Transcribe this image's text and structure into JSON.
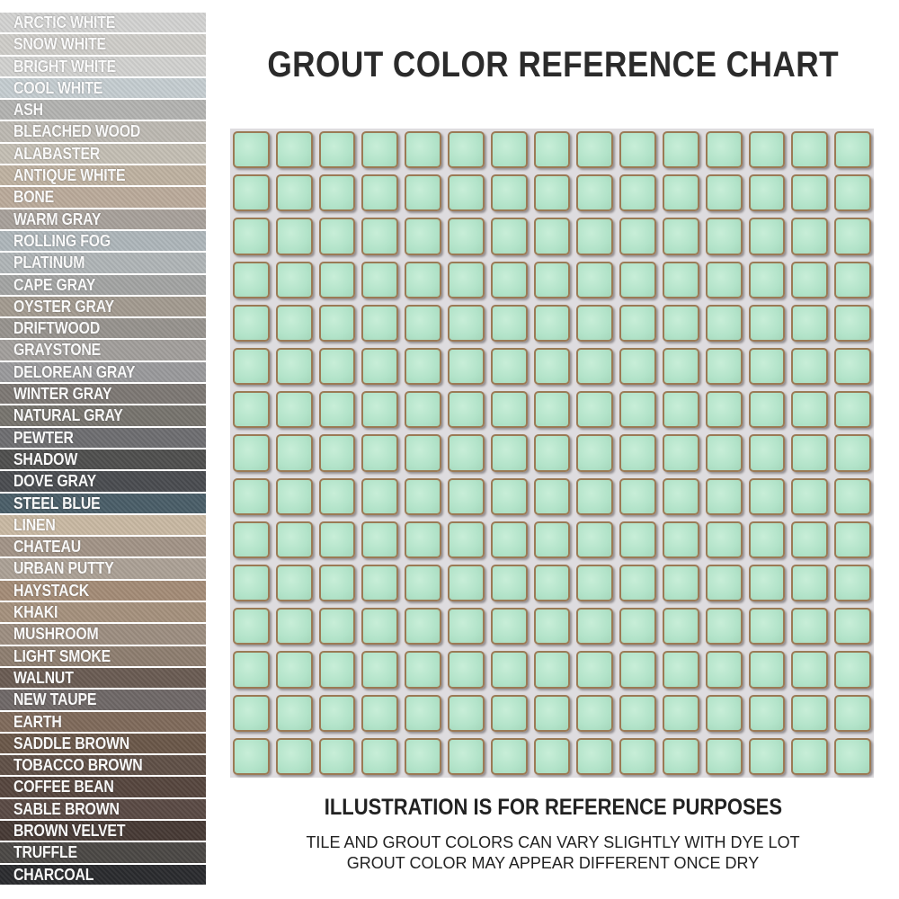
{
  "title": "GROUT COLOR REFERENCE CHART",
  "grout_colors": [
    {
      "name": "ARCTIC WHITE",
      "color": "#d3d3d2"
    },
    {
      "name": "SNOW WHITE",
      "color": "#cfcdc9"
    },
    {
      "name": "BRIGHT WHITE",
      "color": "#d2d2d0"
    },
    {
      "name": "COOL WHITE",
      "color": "#c5cdd1"
    },
    {
      "name": "ASH",
      "color": "#b3b3b1"
    },
    {
      "name": "BLEACHED WOOD",
      "color": "#bdb9b2"
    },
    {
      "name": "ALABASTER",
      "color": "#c4bfb4"
    },
    {
      "name": "ANTIQUE WHITE",
      "color": "#bfb2a1"
    },
    {
      "name": "BONE",
      "color": "#bbab9b"
    },
    {
      "name": "WARM GRAY",
      "color": "#a8a19b"
    },
    {
      "name": "ROLLING FOG",
      "color": "#aeb6ba"
    },
    {
      "name": "PLATINUM",
      "color": "#b0b5b7"
    },
    {
      "name": "CAPE GRAY",
      "color": "#a3a4a3"
    },
    {
      "name": "OYSTER GRAY",
      "color": "#a39b90"
    },
    {
      "name": "DRIFTWOOD",
      "color": "#97938e"
    },
    {
      "name": "GRAYSTONE",
      "color": "#a29f9c"
    },
    {
      "name": "DELOREAN GRAY",
      "color": "#9a9a9c"
    },
    {
      "name": "WINTER GRAY",
      "color": "#7d7874"
    },
    {
      "name": "NATURAL GRAY",
      "color": "#77746e"
    },
    {
      "name": "PEWTER",
      "color": "#6e6e71"
    },
    {
      "name": "SHADOW",
      "color": "#4f4f4e"
    },
    {
      "name": "DOVE GRAY",
      "color": "#4a4c50"
    },
    {
      "name": "STEEL BLUE",
      "color": "#4a5e68"
    },
    {
      "name": "LINEN",
      "color": "#c9b9a3"
    },
    {
      "name": "CHATEAU",
      "color": "#a29487"
    },
    {
      "name": "URBAN PUTTY",
      "color": "#aca196"
    },
    {
      "name": "HAYSTACK",
      "color": "#a48c77"
    },
    {
      "name": "KHAKI",
      "color": "#a5917d"
    },
    {
      "name": "MUSHROOM",
      "color": "#9d8e81"
    },
    {
      "name": "LIGHT SMOKE",
      "color": "#8e7e70"
    },
    {
      "name": "WALNUT",
      "color": "#6a5c53"
    },
    {
      "name": "NEW TAUPE",
      "color": "#6f6867"
    },
    {
      "name": "EARTH",
      "color": "#7f6a5b"
    },
    {
      "name": "SADDLE BROWN",
      "color": "#6a5749"
    },
    {
      "name": "TOBACCO BROWN",
      "color": "#605047"
    },
    {
      "name": "COFFEE BEAN",
      "color": "#56463e"
    },
    {
      "name": "SABLE BROWN",
      "color": "#5a4a44"
    },
    {
      "name": "BROWN VELVET",
      "color": "#473a35"
    },
    {
      "name": "TRUFFLE",
      "color": "#4b4845"
    },
    {
      "name": "CHARCOAL",
      "color": "#2a2b2e"
    }
  ],
  "mosaic": {
    "columns": 15,
    "rows": 15,
    "tile_color": "#b2e3c9",
    "edge_color": "#9b7a55",
    "grout_color": "#dedcdf"
  },
  "notes": {
    "heading": "ILLUSTRATION IS FOR REFERENCE PURPOSES",
    "line1": "TILE AND GROUT COLORS CAN VARY SLIGHTLY WITH DYE LOT",
    "line2": "GROUT COLOR MAY APPEAR DIFFERENT ONCE DRY"
  }
}
